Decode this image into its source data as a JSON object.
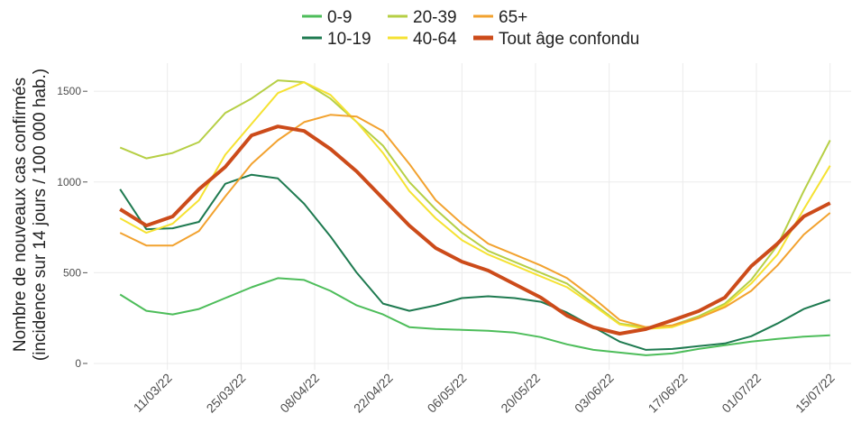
{
  "chart_data": {
    "type": "line",
    "ylabel": [
      "Nombre de nouveaux cas confirmés",
      "(incidence sur 14 jours / 100 000 hab.)"
    ],
    "x": [
      "2022-03-02",
      "2022-03-07",
      "2022-03-12",
      "2022-03-17",
      "2022-03-22",
      "2022-03-27",
      "2022-04-01",
      "2022-04-06",
      "2022-04-11",
      "2022-04-16",
      "2022-04-21",
      "2022-04-26",
      "2022-05-01",
      "2022-05-06",
      "2022-05-11",
      "2022-05-16",
      "2022-05-21",
      "2022-05-26",
      "2022-05-31",
      "2022-06-05",
      "2022-06-10",
      "2022-06-15",
      "2022-06-20",
      "2022-06-25",
      "2022-06-30",
      "2022-07-05",
      "2022-07-10",
      "2022-07-15"
    ],
    "series": [
      {
        "name": "0-9",
        "color": "#4dbd5a",
        "values": [
          380,
          290,
          270,
          300,
          360,
          420,
          470,
          460,
          400,
          320,
          270,
          200,
          190,
          185,
          180,
          170,
          145,
          105,
          75,
          60,
          45,
          55,
          80,
          100,
          120,
          135,
          148,
          155
        ]
      },
      {
        "name": "10-19",
        "color": "#1e7a50",
        "values": [
          960,
          740,
          745,
          780,
          990,
          1040,
          1020,
          880,
          700,
          500,
          330,
          290,
          320,
          360,
          370,
          360,
          340,
          280,
          200,
          120,
          75,
          80,
          95,
          110,
          150,
          220,
          300,
          350
        ]
      },
      {
        "name": "20-39",
        "color": "#b6cf45",
        "values": [
          1190,
          1130,
          1160,
          1220,
          1380,
          1460,
          1560,
          1550,
          1460,
          1330,
          1200,
          1000,
          850,
          720,
          620,
          560,
          500,
          440,
          330,
          220,
          200,
          210,
          260,
          330,
          460,
          650,
          950,
          1230
        ]
      },
      {
        "name": "40-64",
        "color": "#f5e232",
        "values": [
          800,
          720,
          770,
          900,
          1150,
          1320,
          1490,
          1550,
          1480,
          1330,
          1160,
          950,
          800,
          680,
          600,
          540,
          480,
          420,
          320,
          215,
          190,
          200,
          250,
          320,
          440,
          600,
          850,
          1090
        ]
      },
      {
        "name": "65+",
        "color": "#f2a22f",
        "values": [
          720,
          650,
          650,
          730,
          920,
          1100,
          1230,
          1330,
          1370,
          1360,
          1280,
          1100,
          900,
          770,
          660,
          600,
          540,
          470,
          360,
          240,
          200,
          210,
          250,
          310,
          400,
          540,
          710,
          830
        ]
      },
      {
        "name": "Tout âge confondu",
        "color": "#cc4b1a",
        "width": 4,
        "values": [
          850,
          760,
          810,
          960,
          1083,
          1257,
          1306,
          1281,
          1182,
          1058,
          909,
          760,
          636,
          561,
          512,
          437,
          363,
          263,
          199,
          164,
          189,
          238,
          288,
          363,
          536,
          660,
          810,
          884
        ]
      }
    ],
    "xlim": [
      "2022-02-25",
      "2022-07-19"
    ],
    "xticks": [
      {
        "value": "2022-03-11",
        "label": "11/03/22"
      },
      {
        "value": "2022-03-25",
        "label": "25/03/22"
      },
      {
        "value": "2022-04-08",
        "label": "08/04/22"
      },
      {
        "value": "2022-04-22",
        "label": "22/04/22"
      },
      {
        "value": "2022-05-06",
        "label": "06/05/22"
      },
      {
        "value": "2022-05-20",
        "label": "20/05/22"
      },
      {
        "value": "2022-06-03",
        "label": "03/06/22"
      },
      {
        "value": "2022-06-17",
        "label": "17/06/22"
      },
      {
        "value": "2022-07-01",
        "label": "01/07/22"
      },
      {
        "value": "2022-07-15",
        "label": "15/07/22"
      }
    ],
    "ylim": [
      -35,
      1655
    ],
    "yticks": [
      0,
      500,
      1000,
      1500
    ],
    "grid": true
  }
}
